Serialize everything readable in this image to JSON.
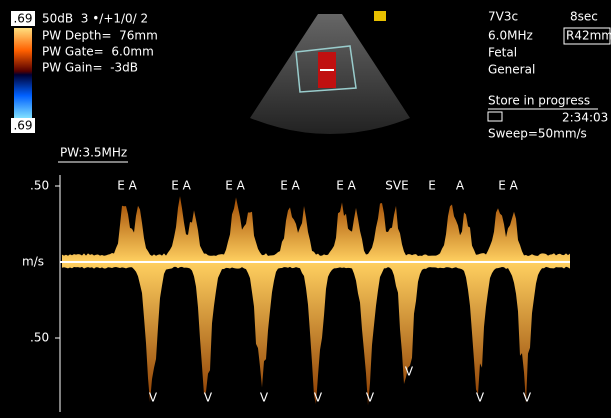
{
  "header": {
    "settings": "50dB  3 •/+1/0/ 2",
    "lines": [
      "PW Depth=  76mm",
      "PW Gate=  6.0mm",
      "PW Gain=  -3dB"
    ],
    "scale_top": ".69",
    "scale_bottom": ".69"
  },
  "info": {
    "probe": "7V3c",
    "time_window": "8sec",
    "frequency": "6.0MHz",
    "radius": "R42mm",
    "preset": "Fetal",
    "application": "General",
    "status": "Store in progress",
    "clock": "2:34:03",
    "sweep": "Sweep=50mm/s"
  },
  "spectral": {
    "mode": "PW:3.5MHz",
    "axis_labels": [
      ".50",
      "m/s",
      ".50"
    ],
    "top_marks": [
      "E A",
      "E A",
      "E A",
      "E A",
      "E A",
      "SVE",
      "E",
      "A",
      "E A"
    ],
    "bottom_marks": [
      "V",
      "V",
      "V",
      "V",
      "V",
      "V",
      "V",
      "V"
    ]
  }
}
